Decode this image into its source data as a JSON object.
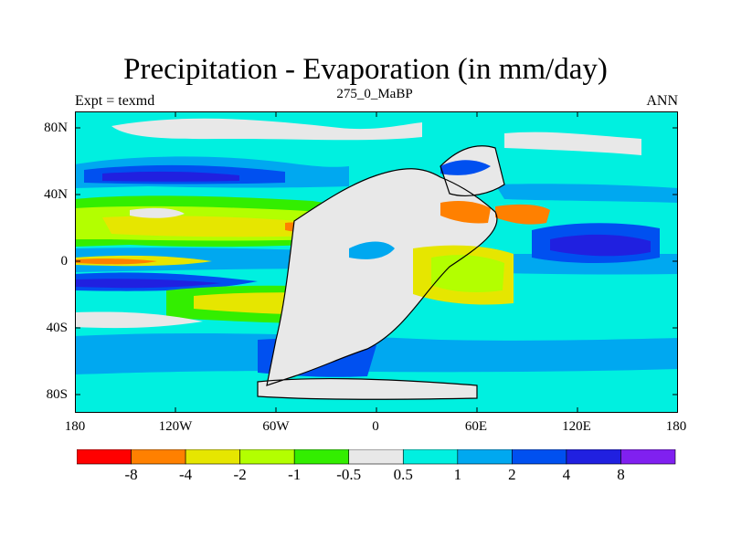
{
  "title": "Precipitation - Evaporation (in mm/day)",
  "subtitle": "275_0_MaBP",
  "left_label": "Expt = texmd",
  "right_label": "ANN",
  "y_ticks": [
    "80N",
    "40N",
    "0",
    "40S",
    "80S"
  ],
  "x_ticks": [
    "180",
    "120W",
    "60W",
    "0",
    "60E",
    "120E",
    "180"
  ],
  "colorbar": {
    "labels": [
      "-8",
      "-4",
      "-2",
      "-1",
      "-0.5",
      "0.5",
      "1",
      "2",
      "4",
      "8"
    ],
    "colors": [
      "#ff0000",
      "#ff8000",
      "#e6e600",
      "#b3ff00",
      "#33ee00",
      "#e8e8e8",
      "#00f0e0",
      "#00a8f0",
      "#0050f0",
      "#2020e0",
      "#8020f0"
    ]
  }
}
